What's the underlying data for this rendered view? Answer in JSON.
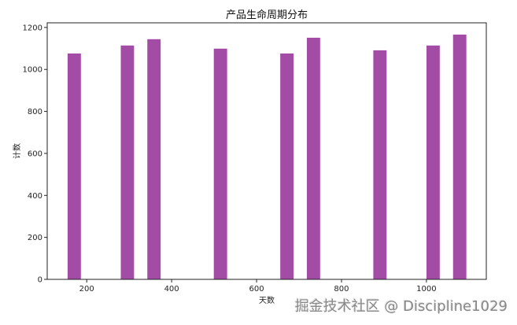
{
  "chart_data": {
    "type": "histogram",
    "title": "产品生命周期分布",
    "xlabel": "天数",
    "ylabel": "计数",
    "xlim": [
      107,
      1141
    ],
    "ylim": [
      0,
      1222
    ],
    "xticks": [
      200,
      400,
      600,
      800,
      1000
    ],
    "yticks": [
      0,
      200,
      400,
      600,
      800,
      1000,
      1200
    ],
    "bin_start": 155,
    "bin_width": 31.3,
    "bins": [
      {
        "bin": 0,
        "count": 1076
      },
      {
        "bin": 4,
        "count": 1114
      },
      {
        "bin": 6,
        "count": 1144
      },
      {
        "bin": 11,
        "count": 1099
      },
      {
        "bin": 16,
        "count": 1076
      },
      {
        "bin": 18,
        "count": 1151
      },
      {
        "bin": 23,
        "count": 1091
      },
      {
        "bin": 27,
        "count": 1114
      },
      {
        "bin": 29,
        "count": 1166
      }
    ],
    "color": "#a24ca6",
    "grid": false
  },
  "watermark": "掘金技术社区 @ Discipline1029"
}
